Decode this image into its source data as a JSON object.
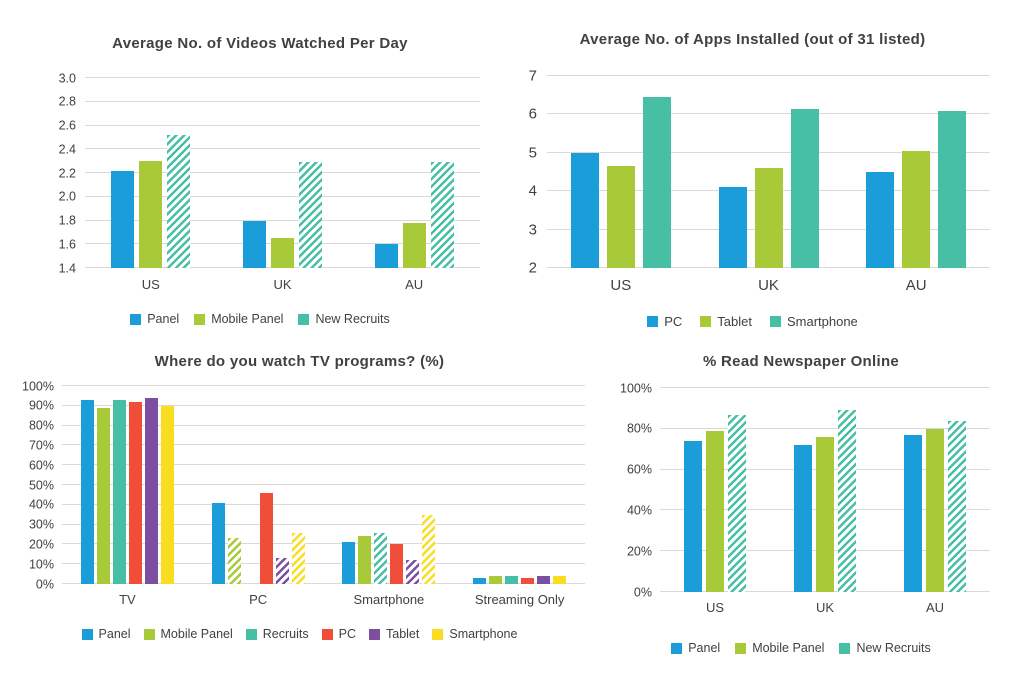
{
  "page": {
    "background": "#ffffff",
    "grid_color": "#d9d9d9",
    "text_color": "#414042"
  },
  "palette": {
    "blue": "#1b9dd9",
    "green": "#a8ca39",
    "teal": "#46bfa4",
    "red": "#f04e38",
    "purple": "#7c4fa0",
    "yellow": "#fadc20"
  },
  "chart_data": [
    {
      "type": "bar",
      "title": "Average No. of Videos Watched Per Day",
      "categories": [
        "US",
        "UK",
        "AU"
      ],
      "ylim": [
        1.4,
        3.0
      ],
      "yticks": [
        {
          "v": 1.4,
          "label": "1.4"
        },
        {
          "v": 1.6,
          "label": "1.6"
        },
        {
          "v": 1.8,
          "label": "1.8"
        },
        {
          "v": 2.0,
          "label": "2.0"
        },
        {
          "v": 2.2,
          "label": "2.2"
        },
        {
          "v": 2.4,
          "label": "2.4"
        },
        {
          "v": 2.6,
          "label": "2.6"
        },
        {
          "v": 2.8,
          "label": "2.8"
        },
        {
          "v": 3.0,
          "label": "3.0"
        }
      ],
      "grid": true,
      "legend_position": "bottom",
      "series": [
        {
          "name": "Panel",
          "color": "#1b9dd9",
          "values": [
            2.22,
            1.8,
            1.6
          ],
          "hatch": [
            false,
            false,
            false
          ]
        },
        {
          "name": "Mobile Panel",
          "color": "#a8ca39",
          "values": [
            2.3,
            1.65,
            1.78
          ],
          "hatch": [
            false,
            false,
            false
          ]
        },
        {
          "name": "New Recruits",
          "color": "#46bfa4",
          "values": [
            2.52,
            2.29,
            2.29
          ],
          "hatch": [
            true,
            true,
            true
          ]
        }
      ]
    },
    {
      "type": "bar",
      "title": "Average No. of Apps Installed (out of 31 listed)",
      "categories": [
        "US",
        "UK",
        "AU"
      ],
      "ylim": [
        2,
        7
      ],
      "yticks": [
        {
          "v": 2,
          "label": "2"
        },
        {
          "v": 3,
          "label": "3"
        },
        {
          "v": 4,
          "label": "4"
        },
        {
          "v": 5,
          "label": "5"
        },
        {
          "v": 6,
          "label": "6"
        },
        {
          "v": 7,
          "label": "7"
        }
      ],
      "grid": true,
      "legend_position": "bottom",
      "series": [
        {
          "name": "PC",
          "color": "#1b9dd9",
          "values": [
            5.0,
            4.1,
            4.5
          ],
          "hatch": [
            false,
            false,
            false
          ]
        },
        {
          "name": "Tablet",
          "color": "#a8ca39",
          "values": [
            4.65,
            4.6,
            5.05
          ],
          "hatch": [
            false,
            false,
            false
          ]
        },
        {
          "name": "Smartphone",
          "color": "#46bfa4",
          "values": [
            6.45,
            6.15,
            6.1
          ],
          "hatch": [
            false,
            false,
            false
          ]
        }
      ]
    },
    {
      "type": "bar",
      "title": "Where do you watch TV programs? (%)",
      "categories": [
        "TV",
        "PC",
        "Smartphone",
        "Streaming Only"
      ],
      "ylim": [
        0,
        100
      ],
      "yticks": [
        {
          "v": 0,
          "label": "0%"
        },
        {
          "v": 10,
          "label": "10%"
        },
        {
          "v": 20,
          "label": "20%"
        },
        {
          "v": 30,
          "label": "30%"
        },
        {
          "v": 40,
          "label": "40%"
        },
        {
          "v": 50,
          "label": "50%"
        },
        {
          "v": 60,
          "label": "60%"
        },
        {
          "v": 70,
          "label": "70%"
        },
        {
          "v": 80,
          "label": "80%"
        },
        {
          "v": 90,
          "label": "90%"
        },
        {
          "v": 100,
          "label": "100%"
        }
      ],
      "grid": true,
      "legend_position": "bottom",
      "series": [
        {
          "name": "Panel",
          "color": "#1b9dd9",
          "values": [
            93,
            41,
            21,
            3
          ],
          "hatch": [
            false,
            false,
            false,
            false
          ]
        },
        {
          "name": "Mobile Panel",
          "color": "#a8ca39",
          "values": [
            89,
            23,
            24,
            4
          ],
          "hatch": [
            false,
            true,
            false,
            false
          ]
        },
        {
          "name": "Recruits",
          "color": "#46bfa4",
          "values": [
            93,
            0,
            26,
            4
          ],
          "hatch": [
            false,
            false,
            true,
            false
          ]
        },
        {
          "name": "PC",
          "color": "#f04e38",
          "values": [
            92,
            46,
            20,
            3
          ],
          "hatch": [
            false,
            false,
            false,
            false
          ]
        },
        {
          "name": "Tablet",
          "color": "#7c4fa0",
          "values": [
            94,
            13,
            12,
            4
          ],
          "hatch": [
            false,
            true,
            true,
            false
          ]
        },
        {
          "name": "Smartphone",
          "color": "#fadc20",
          "values": [
            90,
            26,
            35,
            4
          ],
          "hatch": [
            false,
            true,
            true,
            false
          ]
        }
      ]
    },
    {
      "type": "bar",
      "title": "% Read Newspaper Online",
      "categories": [
        "US",
        "UK",
        "AU"
      ],
      "ylim": [
        0,
        100
      ],
      "yticks": [
        {
          "v": 0,
          "label": "0%"
        },
        {
          "v": 20,
          "label": "20%"
        },
        {
          "v": 40,
          "label": "40%"
        },
        {
          "v": 60,
          "label": "60%"
        },
        {
          "v": 80,
          "label": "80%"
        },
        {
          "v": 100,
          "label": "100%"
        }
      ],
      "grid": true,
      "legend_position": "bottom",
      "series": [
        {
          "name": "Panel",
          "color": "#1b9dd9",
          "values": [
            74,
            72,
            77
          ],
          "hatch": [
            false,
            false,
            false
          ]
        },
        {
          "name": "Mobile Panel",
          "color": "#a8ca39",
          "values": [
            79,
            76,
            80
          ],
          "hatch": [
            false,
            false,
            false
          ]
        },
        {
          "name": "New Recruits",
          "color": "#46bfa4",
          "values": [
            87,
            89,
            84
          ],
          "hatch": [
            true,
            true,
            true
          ]
        }
      ]
    }
  ]
}
